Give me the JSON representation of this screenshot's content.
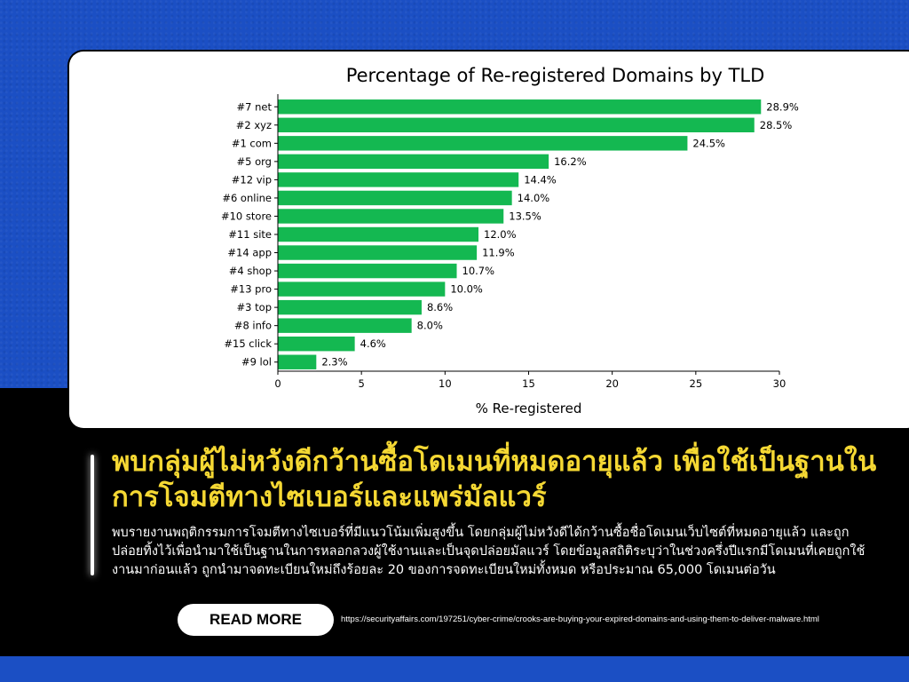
{
  "chart_data": {
    "type": "bar",
    "orientation": "horizontal",
    "title": "Percentage of Re-registered Domains by TLD",
    "xlabel": "% Re-registered",
    "ylabel": "",
    "xlim": [
      0,
      30
    ],
    "xticks": [
      "0",
      "5",
      "10",
      "15",
      "20",
      "25",
      "30"
    ],
    "categories": [
      "#7 net",
      "#2 xyz",
      "#1 com",
      "#5 org",
      "#12 vip",
      "#6 online",
      "#10 store",
      "#11 site",
      "#14 app",
      "#4 shop",
      "#13 pro",
      "#3 top",
      "#8 info",
      "#15 click",
      "#9 lol"
    ],
    "values": [
      28.9,
      28.5,
      24.5,
      16.2,
      14.4,
      14.0,
      13.5,
      12.0,
      11.9,
      10.7,
      10.0,
      8.6,
      8.0,
      4.6,
      2.3
    ],
    "value_labels": [
      "28.9%",
      "28.5%",
      "24.5%",
      "16.2%",
      "14.4%",
      "14.0%",
      "13.5%",
      "12.0%",
      "11.9%",
      "10.7%",
      "10.0%",
      "8.6%",
      "8.0%",
      "4.6%",
      "2.3%"
    ],
    "bar_color": "#14b851",
    "grid": false,
    "legend": "none"
  },
  "article": {
    "headline": "พบกลุ่มผู้ไม่หวังดีกว้านซื้อโดเมนที่หมดอายุแล้ว เพื่อใช้เป็นฐานในการโจมตีทางไซเบอร์และแพร่มัลแวร์",
    "body": "พบรายงานพฤติกรรมการโจมตีทางไซเบอร์ที่มีแนวโน้มเพิ่มสูงขึ้น โดยกลุ่มผู้ไม่หวังดีได้กว้านซื้อชื่อโดเมนเว็บไซต์ที่หมดอายุแล้ว และถูกปล่อยทิ้งไว้เพื่อนำมาใช้เป็นฐานในการหลอกลวงผู้ใช้งานและเป็นจุดปล่อยมัลแวร์ โดยข้อมูลสถิติระบุว่าในช่วงครึ่งปีแรกมีโดเมนที่เคยถูกใช้งานมาก่อนแล้ว ถูกนำมาจดทะเบียนใหม่ถึงร้อยละ 20 ของการจดทะเบียนใหม่ทั้งหมด หรือประมาณ 65,000 โดเมนต่อวัน",
    "read_more_label": "READ MORE",
    "source_url": "https://securityaffairs.com/197251/cyber-crime/crooks-are-buying-your-expired-domains-and-using-them-to-deliver-malware.html"
  },
  "colors": {
    "background_blue": "#1b4fc4",
    "panel_black": "#000000",
    "headline_yellow": "#f5d833",
    "text_white": "#ffffff"
  }
}
